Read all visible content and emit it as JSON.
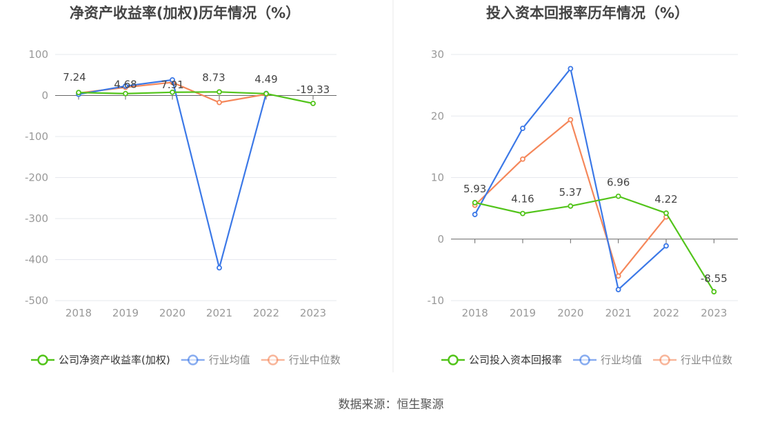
{
  "colors": {
    "company": "#52c41a",
    "industry_avg": "#3b78e7",
    "industry_median": "#f5875a",
    "grid": "#e6e8ee",
    "axis_text": "#999999",
    "title_text": "#444444",
    "divider": "#e8e8e8"
  },
  "source": "数据来源：恒生聚源",
  "chart_data": [
    {
      "type": "line",
      "title": "净资产收益率(加权)历年情况（%）",
      "categories": [
        "2018",
        "2019",
        "2020",
        "2021",
        "2022",
        "2023"
      ],
      "ylim": [
        -500,
        100
      ],
      "yticks": [
        100,
        0,
        -100,
        -200,
        -300,
        -400,
        -500
      ],
      "grid": true,
      "legend_position": "bottom",
      "series": [
        {
          "name": "公司净资产收益率(加权)",
          "color_key": "company",
          "values": [
            7.24,
            4.68,
            7.91,
            8.73,
            4.49,
            -19.33
          ],
          "labels": [
            "7.24",
            "4.68",
            "7.91",
            "8.73",
            "4.49",
            "-19.33"
          ]
        },
        {
          "name": "行业均值",
          "color_key": "industry_avg",
          "values": [
            3,
            23,
            38,
            -420,
            5,
            null
          ]
        },
        {
          "name": "行业中位数",
          "color_key": "industry_median",
          "values": [
            6,
            20,
            32,
            -17,
            3,
            null
          ]
        }
      ]
    },
    {
      "type": "line",
      "title": "投入资本回报率历年情况（%）",
      "categories": [
        "2018",
        "2019",
        "2020",
        "2021",
        "2022",
        "2023"
      ],
      "ylim": [
        -10,
        30
      ],
      "yticks": [
        30,
        20,
        10,
        0,
        -10
      ],
      "grid": true,
      "legend_position": "bottom",
      "series": [
        {
          "name": "公司投入资本回报率",
          "color_key": "company",
          "values": [
            5.93,
            4.16,
            5.37,
            6.96,
            4.22,
            -8.55
          ],
          "labels": [
            "5.93",
            "4.16",
            "5.37",
            "6.96",
            "4.22",
            "-8.55"
          ]
        },
        {
          "name": "行业均值",
          "color_key": "industry_avg",
          "values": [
            4,
            18,
            27.7,
            -8.2,
            -1.1,
            null
          ]
        },
        {
          "name": "行业中位数",
          "color_key": "industry_median",
          "values": [
            5.5,
            13,
            19.4,
            -6,
            3.6,
            null
          ]
        }
      ]
    }
  ]
}
